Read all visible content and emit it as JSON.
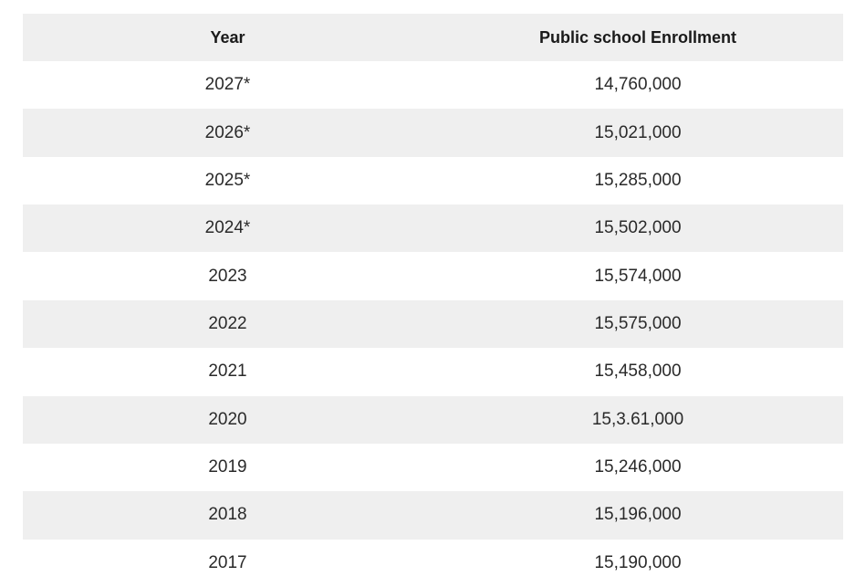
{
  "chart_data": {
    "type": "table",
    "columns": [
      "Year",
      "Public school Enrollment"
    ],
    "rows": [
      {
        "year": "2027*",
        "enrollment": "14,760,000"
      },
      {
        "year": "2026*",
        "enrollment": "15,021,000"
      },
      {
        "year": "2025*",
        "enrollment": "15,285,000"
      },
      {
        "year": "2024*",
        "enrollment": "15,502,000"
      },
      {
        "year": "2023",
        "enrollment": "15,574,000"
      },
      {
        "year": "2022",
        "enrollment": "15,575,000"
      },
      {
        "year": "2021",
        "enrollment": "15,458,000"
      },
      {
        "year": "2020",
        "enrollment": "15,3.61,000"
      },
      {
        "year": "2019",
        "enrollment": "15,246,000"
      },
      {
        "year": "2018",
        "enrollment": "15,196,000"
      },
      {
        "year": "2017",
        "enrollment": "15,190,000"
      }
    ]
  },
  "colors": {
    "header_background": "#efefef",
    "stripe_background": "#efefef",
    "row_background": "#ffffff",
    "text": "#2a2a2a"
  }
}
